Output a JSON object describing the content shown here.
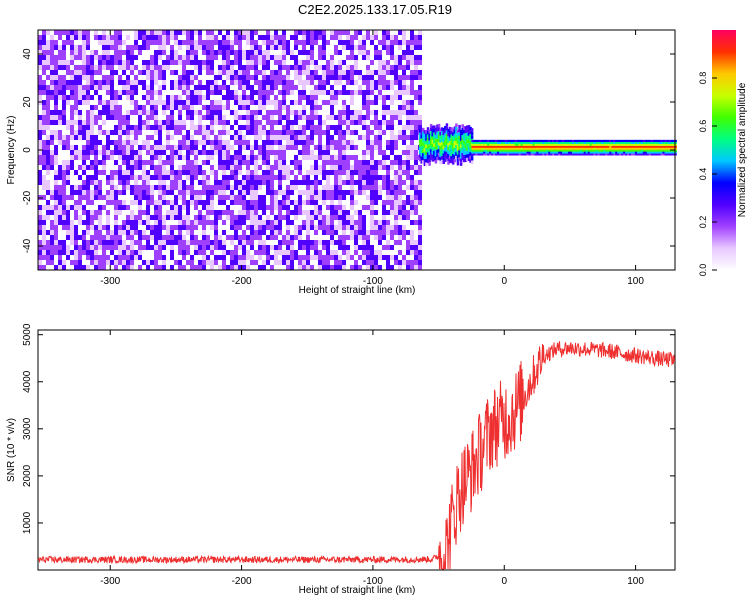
{
  "title": "C2E2.2025.133.17.05.R19",
  "chart_data": [
    {
      "type": "heatmap",
      "xlabel": "Height of straight line (km)",
      "ylabel": "Frequency (Hz)",
      "xlim": [
        -355,
        130
      ],
      "ylim": [
        -50,
        50
      ],
      "xticks": [
        -300,
        -200,
        -100,
        0,
        100
      ],
      "yticks": [
        -40,
        -20,
        0,
        20,
        40
      ],
      "colorbar": {
        "label": "Normalized spectral amplitude",
        "range": [
          0.0,
          1.0
        ],
        "ticks": [
          "0.0",
          "0.2",
          "0.4",
          "0.6",
          "0.8"
        ],
        "colors": [
          "#ffffff",
          "#e8c8ff",
          "#a040ff",
          "#5000ff",
          "#0000ff",
          "#00c8ff",
          "#00ff80",
          "#40ff00",
          "#c8ff00",
          "#ffc800",
          "#ff3000",
          "#ff0060"
        ]
      },
      "regions": [
        {
          "name": "noise",
          "x_range": [
            -355,
            -65
          ],
          "f_range": [
            -50,
            50
          ],
          "amplitude_range": [
            0.0,
            0.3
          ]
        },
        {
          "name": "transition",
          "x_range": [
            -65,
            -25
          ],
          "f_center": 2,
          "f_halfwidth": 7,
          "amplitude_range": [
            0.2,
            0.7
          ]
        },
        {
          "name": "carrier",
          "x_range": [
            -25,
            130
          ],
          "f_center": 1,
          "f_halfwidth": 3,
          "amplitude_range": [
            0.4,
            0.95
          ]
        }
      ]
    },
    {
      "type": "line",
      "xlabel": "Height of straight line (km)",
      "ylabel": "SNR (10 * v/v)",
      "xlim": [
        -355,
        130
      ],
      "ylim": [
        0,
        5100
      ],
      "xticks": [
        -300,
        -200,
        -100,
        0,
        100
      ],
      "yticks": [
        1000,
        2000,
        3000,
        4000,
        5000
      ],
      "color": "#ee3030",
      "series": [
        {
          "x": [
            -355,
            -300,
            -200,
            -100,
            -55,
            -45,
            -40,
            -35,
            -30,
            -25,
            -20,
            -15,
            -10,
            -5,
            0,
            5,
            10,
            15,
            20,
            25,
            30,
            40,
            50,
            60,
            70,
            80,
            90,
            100,
            110,
            120,
            130
          ],
          "values": [
            220,
            220,
            220,
            220,
            230,
            350,
            1000,
            1600,
            1900,
            2100,
            2400,
            2700,
            3000,
            3100,
            3200,
            3300,
            3450,
            3700,
            4000,
            4300,
            4550,
            4700,
            4720,
            4700,
            4680,
            4650,
            4600,
            4560,
            4520,
            4480,
            4450
          ]
        }
      ]
    }
  ]
}
